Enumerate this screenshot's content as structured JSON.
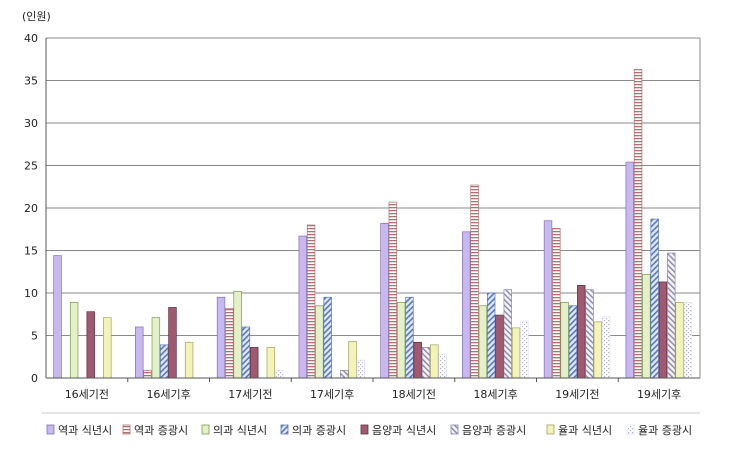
{
  "chart_data": {
    "type": "bar",
    "unit_label": "(인원)",
    "categories": [
      "16세기전",
      "16세기후",
      "17세기전",
      "17세기후",
      "18세기전",
      "18세기후",
      "19세기전",
      "19세기후"
    ],
    "ylim": [
      0,
      40
    ],
    "yticks": [
      0,
      5,
      10,
      15,
      20,
      25,
      30,
      35,
      40
    ],
    "grid": true,
    "legend_position": "bottom",
    "series": [
      {
        "name": "역과 식년시",
        "color": "#c8b8f0",
        "pattern": "solid",
        "values": [
          14.4,
          6.0,
          9.5,
          16.7,
          18.2,
          17.2,
          18.5,
          25.4
        ]
      },
      {
        "name": "역과 증광시",
        "color": "#b07070",
        "pattern": "hlines",
        "values": [
          0,
          0.9,
          8.2,
          18.0,
          20.7,
          22.7,
          17.6,
          36.3
        ]
      },
      {
        "name": "의과 식년시",
        "color": "#e4f0c8",
        "pattern": "solid",
        "values": [
          8.9,
          7.1,
          10.2,
          8.5,
          8.9,
          8.5,
          8.9,
          12.2
        ]
      },
      {
        "name": "의과 증광시",
        "color": "#5a78b8",
        "pattern": "diag",
        "values": [
          0,
          3.9,
          6.0,
          9.5,
          9.5,
          10.0,
          8.5,
          18.7
        ]
      },
      {
        "name": "음양과 식년시",
        "color": "#a05a70",
        "pattern": "solid",
        "values": [
          7.8,
          8.3,
          3.6,
          0,
          4.2,
          7.4,
          10.9,
          11.3
        ]
      },
      {
        "name": "음양과 증광시",
        "color": "#8a8aa8",
        "pattern": "diag2",
        "values": [
          0,
          0,
          0,
          0.9,
          3.6,
          10.4,
          10.4,
          14.7
        ]
      },
      {
        "name": "율과 식년시",
        "color": "#f4f4b8",
        "pattern": "solid",
        "values": [
          7.1,
          4.2,
          3.6,
          4.3,
          3.9,
          5.9,
          6.6,
          8.9
        ]
      },
      {
        "name": "율과 증광시",
        "color": "#e0e0f0",
        "pattern": "dots",
        "values": [
          0,
          0,
          0.9,
          2.1,
          2.8,
          6.7,
          7.2,
          8.9
        ]
      }
    ]
  }
}
